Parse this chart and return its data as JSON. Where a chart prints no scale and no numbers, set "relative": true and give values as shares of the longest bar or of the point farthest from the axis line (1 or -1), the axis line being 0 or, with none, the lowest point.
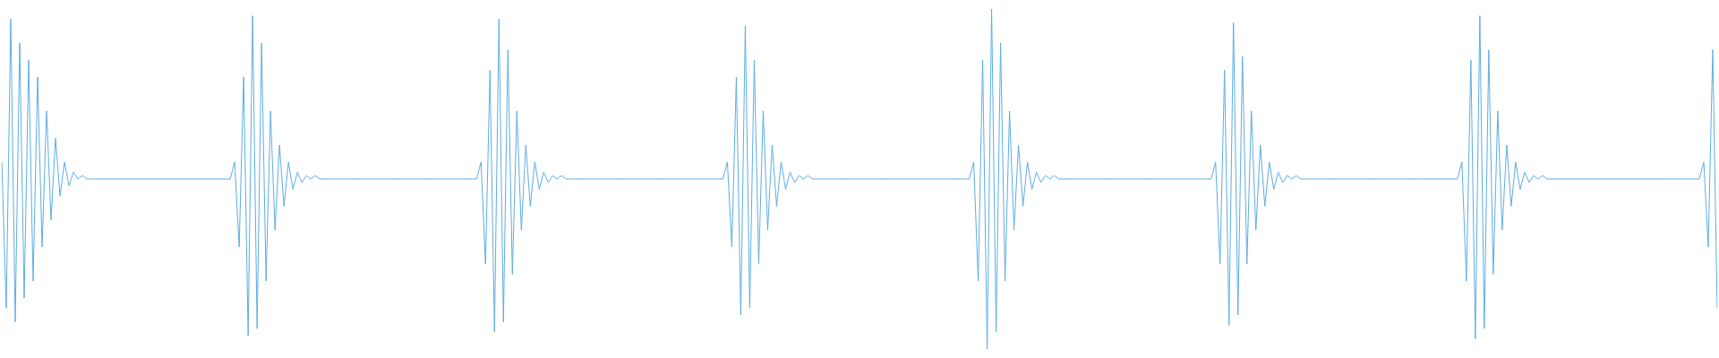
{
  "chart_data": {
    "type": "line",
    "relative": true,
    "color": "#5dade2",
    "categories": [
      null,
      null,
      null,
      null,
      null,
      null,
      null,
      null,
      null,
      null,
      null,
      null,
      null,
      null,
      null,
      null,
      null,
      null,
      null,
      null,
      null,
      null,
      null,
      null,
      null,
      null,
      null,
      null,
      null,
      null,
      null,
      null,
      null,
      null,
      null,
      null,
      null,
      null,
      null,
      null,
      null,
      null,
      null,
      null,
      null,
      null,
      null,
      null,
      null,
      null,
      null,
      null,
      null,
      null,
      null,
      null,
      null,
      null,
      null,
      null,
      null,
      null,
      null,
      null,
      null,
      null,
      null,
      null,
      null,
      null,
      null,
      null,
      null,
      null,
      null,
      null,
      null,
      null,
      null,
      null,
      null,
      null,
      null,
      null,
      null,
      null,
      null,
      null,
      null,
      null,
      null,
      null,
      null,
      null,
      null,
      null,
      null,
      null,
      null,
      null,
      null,
      null,
      null,
      null,
      null,
      null,
      null,
      null,
      null,
      null,
      null,
      null,
      null,
      null,
      null,
      null,
      null,
      null,
      null,
      null,
      null,
      null,
      null,
      null,
      null,
      null,
      null,
      null,
      null,
      null,
      null,
      null,
      null,
      null,
      null,
      null,
      null,
      null,
      null,
      null,
      null,
      null,
      null,
      null,
      null,
      null,
      null,
      null,
      null,
      null,
      null,
      null,
      null,
      null,
      null,
      null,
      null,
      null,
      null,
      null,
      null,
      null,
      null,
      null,
      null,
      null,
      null,
      null,
      null,
      null,
      null,
      null,
      null,
      null,
      null,
      null,
      null,
      null,
      null,
      null,
      null,
      null,
      null,
      null,
      null,
      null,
      null,
      null,
      null,
      null,
      null,
      null,
      null,
      null,
      null,
      null,
      null,
      null,
      null,
      null,
      null,
      null,
      null,
      null,
      null,
      null,
      null,
      null,
      null,
      null,
      null,
      null,
      null,
      null,
      null,
      null,
      null,
      null,
      null,
      null,
      null,
      null,
      null,
      null,
      null,
      null,
      null,
      null,
      null,
      null,
      null,
      null,
      null,
      null,
      null,
      null,
      null,
      null,
      null,
      null,
      null,
      null,
      null,
      null,
      null,
      null,
      null,
      null,
      null,
      null,
      null,
      null,
      null,
      null,
      null,
      null,
      null,
      null,
      null,
      null,
      null,
      null,
      null,
      null,
      null,
      null,
      null,
      null,
      null,
      null,
      null,
      null,
      null,
      null,
      null,
      null,
      null,
      null,
      null,
      null,
      null,
      null,
      null,
      null,
      null,
      null,
      null,
      null,
      null,
      null,
      null,
      null,
      null,
      null,
      null,
      null,
      null,
      null,
      null,
      null,
      null,
      null,
      null,
      null,
      null,
      null,
      null,
      null,
      null,
      null,
      null,
      null,
      null,
      null,
      null,
      null,
      null,
      null,
      null,
      null,
      null,
      null,
      null,
      null,
      null,
      null,
      null,
      null,
      null,
      null,
      null,
      null,
      null,
      null,
      null,
      null,
      null,
      null,
      null,
      null,
      null,
      null,
      null,
      null,
      null,
      null,
      null,
      null,
      null,
      null,
      null,
      null,
      null,
      null,
      null,
      null,
      null,
      null,
      null,
      null,
      null,
      null,
      null,
      null,
      null,
      null,
      null,
      null,
      null,
      null,
      null,
      null,
      null,
      null,
      null,
      null,
      null,
      null,
      null,
      null,
      null,
      null,
      null,
      null
    ],
    "values": [
      0.55,
      0.12,
      0.97,
      0.08,
      0.9,
      0.15,
      0.85,
      0.2,
      0.8,
      0.3,
      0.7,
      0.38,
      0.62,
      0.45,
      0.55,
      0.48,
      0.52,
      0.5,
      0.51,
      0.5,
      0.5,
      0.5,
      0.5,
      0.5,
      0.5,
      0.5,
      0.5,
      0.5,
      0.5,
      0.5,
      0.5,
      0.5,
      0.5,
      0.5,
      0.5,
      0.5,
      0.5,
      0.5,
      0.5,
      0.5,
      0.5,
      0.5,
      0.5,
      0.5,
      0.5,
      0.5,
      0.5,
      0.5,
      0.5,
      0.5,
      0.5,
      0.5,
      0.55,
      0.3,
      0.8,
      0.04,
      0.98,
      0.06,
      0.9,
      0.2,
      0.7,
      0.35,
      0.6,
      0.42,
      0.55,
      0.47,
      0.52,
      0.49,
      0.51,
      0.5,
      0.51,
      0.5,
      0.5,
      0.5,
      0.5,
      0.5,
      0.5,
      0.5,
      0.5,
      0.5,
      0.5,
      0.5,
      0.5,
      0.5,
      0.5,
      0.5,
      0.5,
      0.5,
      0.5,
      0.5,
      0.5,
      0.5,
      0.5,
      0.5,
      0.5,
      0.5,
      0.5,
      0.5,
      0.5,
      0.5,
      0.5,
      0.5,
      0.5,
      0.5,
      0.5,
      0.5,
      0.5,
      0.55,
      0.25,
      0.82,
      0.05,
      0.97,
      0.08,
      0.88,
      0.22,
      0.7,
      0.35,
      0.6,
      0.42,
      0.55,
      0.47,
      0.52,
      0.49,
      0.51,
      0.5,
      0.51,
      0.5,
      0.5,
      0.5,
      0.5,
      0.5,
      0.5,
      0.5,
      0.5,
      0.5,
      0.5,
      0.5,
      0.5,
      0.5,
      0.5,
      0.5,
      0.5,
      0.5,
      0.5,
      0.5,
      0.5,
      0.5,
      0.5,
      0.5,
      0.5,
      0.5,
      0.5,
      0.5,
      0.5,
      0.5,
      0.5,
      0.5,
      0.5,
      0.5,
      0.5,
      0.5,
      0.5,
      0.55,
      0.3,
      0.8,
      0.1,
      0.95,
      0.12,
      0.85,
      0.25,
      0.7,
      0.35,
      0.6,
      0.42,
      0.55,
      0.47,
      0.52,
      0.49,
      0.51,
      0.5,
      0.51,
      0.5,
      0.5,
      0.5,
      0.5,
      0.5,
      0.5,
      0.5,
      0.5,
      0.5,
      0.5,
      0.5,
      0.5,
      0.5,
      0.5,
      0.5,
      0.5,
      0.5,
      0.5,
      0.5,
      0.5,
      0.5,
      0.5,
      0.5,
      0.5,
      0.5,
      0.5,
      0.5,
      0.5,
      0.5,
      0.5,
      0.5,
      0.5,
      0.5,
      0.5,
      0.5,
      0.5,
      0.55,
      0.2,
      0.85,
      0.0,
      1.0,
      0.05,
      0.9,
      0.2,
      0.7,
      0.35,
      0.6,
      0.42,
      0.55,
      0.47,
      0.52,
      0.49,
      0.51,
      0.5,
      0.51,
      0.5,
      0.5,
      0.5,
      0.5,
      0.5,
      0.5,
      0.5,
      0.5,
      0.5,
      0.5,
      0.5,
      0.5,
      0.5,
      0.5,
      0.5,
      0.5,
      0.5,
      0.5,
      0.5,
      0.5,
      0.5,
      0.5,
      0.5,
      0.5,
      0.5,
      0.5,
      0.5,
      0.5,
      0.5,
      0.5,
      0.5,
      0.5,
      0.5,
      0.5,
      0.5,
      0.55,
      0.25,
      0.82,
      0.07,
      0.96,
      0.1,
      0.86,
      0.25,
      0.7,
      0.35,
      0.6,
      0.42,
      0.55,
      0.47,
      0.52,
      0.49,
      0.51,
      0.5,
      0.51,
      0.5,
      0.5,
      0.5,
      0.5,
      0.5,
      0.5,
      0.5,
      0.5,
      0.5,
      0.5,
      0.5,
      0.5,
      0.5,
      0.5,
      0.5,
      0.5,
      0.5,
      0.5,
      0.5,
      0.5,
      0.5,
      0.5,
      0.5,
      0.5,
      0.5,
      0.5,
      0.5,
      0.5,
      0.5,
      0.5,
      0.5,
      0.5,
      0.5,
      0.5,
      0.5,
      0.5,
      0.55,
      0.2,
      0.85,
      0.03,
      0.98,
      0.06,
      0.88,
      0.22,
      0.7,
      0.35,
      0.6,
      0.42,
      0.55,
      0.47,
      0.52,
      0.49,
      0.51,
      0.5,
      0.51,
      0.5,
      0.5,
      0.5,
      0.5,
      0.5,
      0.5,
      0.5,
      0.5,
      0.5,
      0.5,
      0.5,
      0.5,
      0.5,
      0.5,
      0.5,
      0.5,
      0.5,
      0.5,
      0.5,
      0.5,
      0.5,
      0.5,
      0.5,
      0.5,
      0.5,
      0.5,
      0.5,
      0.5,
      0.5,
      0.5,
      0.5,
      0.5,
      0.5,
      0.5,
      0.5,
      0.55,
      0.3,
      0.88,
      0.12
    ]
  }
}
